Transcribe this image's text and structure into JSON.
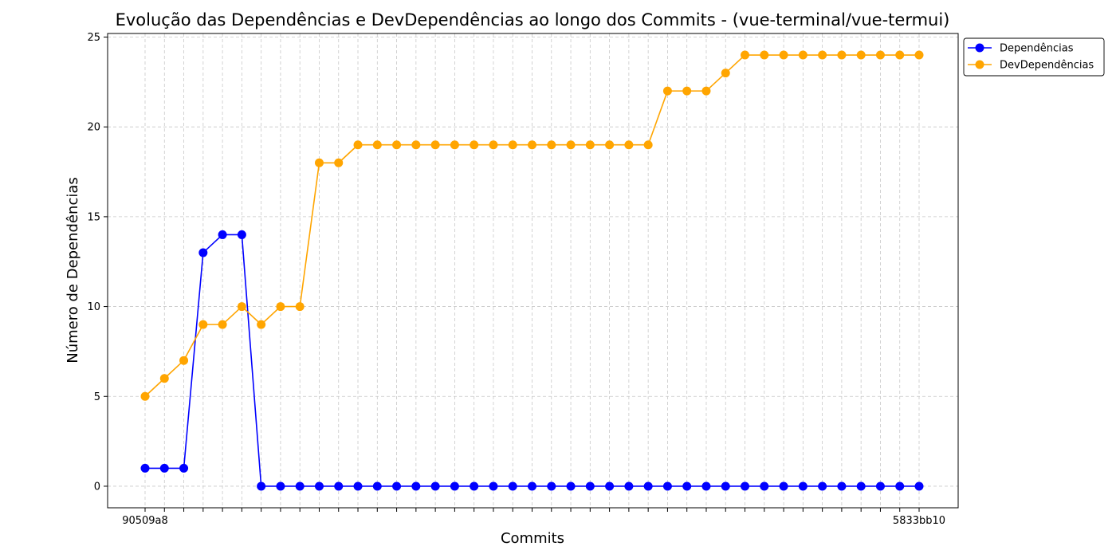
{
  "chart_data": {
    "type": "line",
    "title": "Evolução das Dependências e DevDependências ao longo dos Commits - (vue-terminal/vue-termui)",
    "xlabel": "Commits",
    "ylabel": "Número de Dependências",
    "ylim": [
      -1.2,
      25.2
    ],
    "yticks": [
      0,
      5,
      10,
      15,
      20,
      25
    ],
    "grid": true,
    "legend_position": "outside-top-right",
    "x_tick_labels_first_last": [
      "90509a8",
      "5833bb10"
    ],
    "categories": [
      "1",
      "2",
      "3",
      "4",
      "5",
      "6",
      "7",
      "8",
      "9",
      "10",
      "11",
      "12",
      "13",
      "14",
      "15",
      "16",
      "17",
      "18",
      "19",
      "20",
      "21",
      "22",
      "23",
      "24",
      "25",
      "26",
      "27",
      "28",
      "29",
      "30",
      "31",
      "32",
      "33",
      "34",
      "35",
      "36",
      "37",
      "38",
      "39",
      "40",
      "41"
    ],
    "series": [
      {
        "name": "Dependências",
        "color": "#0000ff",
        "values": [
          1,
          1,
          1,
          13,
          14,
          14,
          0,
          0,
          0,
          0,
          0,
          0,
          0,
          0,
          0,
          0,
          0,
          0,
          0,
          0,
          0,
          0,
          0,
          0,
          0,
          0,
          0,
          0,
          0,
          0,
          0,
          0,
          0,
          0,
          0,
          0,
          0,
          0,
          0,
          0,
          0
        ]
      },
      {
        "name": "DevDependências",
        "color": "#ffa500",
        "values": [
          5,
          6,
          7,
          9,
          9,
          10,
          9,
          10,
          10,
          18,
          18,
          19,
          19,
          19,
          19,
          19,
          19,
          19,
          19,
          19,
          19,
          19,
          19,
          19,
          19,
          19,
          19,
          22,
          22,
          22,
          23,
          24,
          24,
          24,
          24,
          24,
          24,
          24,
          24,
          24,
          24
        ]
      }
    ]
  }
}
